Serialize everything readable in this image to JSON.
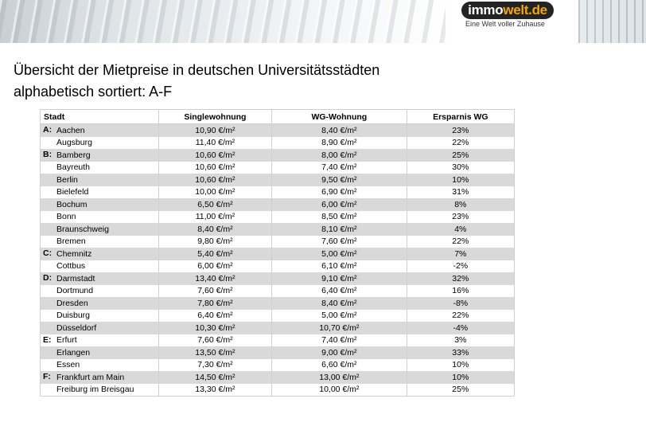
{
  "logo": {
    "part1": "immo",
    "part2": "welt.de",
    "tagline": "Eine Welt voller Zuhause"
  },
  "title_line1": "Übersicht der Mietpreise in deutschen Universitätsstädten",
  "title_line2": "alphabetisch sortiert: A-F",
  "table": {
    "headers": [
      "Stadt",
      "Singlewohnung",
      "WG-Wohnung",
      "Ersparnis WG"
    ],
    "rows": [
      {
        "letter": "A:",
        "city": "Aachen",
        "single": "10,90 €/m²",
        "wg": "8,40 €/m²",
        "savings": "23%"
      },
      {
        "letter": "",
        "city": "Augsburg",
        "single": "11,40 €/m²",
        "wg": "8,90 €/m²",
        "savings": "22%"
      },
      {
        "letter": "B:",
        "city": "Bamberg",
        "single": "10,60 €/m²",
        "wg": "8,00 €/m²",
        "savings": "25%"
      },
      {
        "letter": "",
        "city": "Bayreuth",
        "single": "10,60 €/m²",
        "wg": "7,40 €/m²",
        "savings": "30%"
      },
      {
        "letter": "",
        "city": "Berlin",
        "single": "10,60 €/m²",
        "wg": "9,50 €/m²",
        "savings": "10%"
      },
      {
        "letter": "",
        "city": "Bielefeld",
        "single": "10,00 €/m²",
        "wg": "6,90 €/m²",
        "savings": "31%"
      },
      {
        "letter": "",
        "city": "Bochum",
        "single": "6,50 €/m²",
        "wg": "6,00 €/m²",
        "savings": "8%"
      },
      {
        "letter": "",
        "city": "Bonn",
        "single": "11,00 €/m²",
        "wg": "8,50 €/m²",
        "savings": "23%"
      },
      {
        "letter": "",
        "city": "Braunschweig",
        "single": "8,40 €/m²",
        "wg": "8,10 €/m²",
        "savings": "4%"
      },
      {
        "letter": "",
        "city": "Bremen",
        "single": "9,80 €/m²",
        "wg": "7,60 €/m²",
        "savings": "22%"
      },
      {
        "letter": "C:",
        "city": "Chemnitz",
        "single": "5,40 €/m²",
        "wg": "5,00 €/m²",
        "savings": "7%"
      },
      {
        "letter": "",
        "city": "Cottbus",
        "single": "6,00 €/m²",
        "wg": "6,10 €/m²",
        "savings": "-2%"
      },
      {
        "letter": "D:",
        "city": "Darmstadt",
        "single": "13,40 €/m²",
        "wg": "9,10 €/m²",
        "savings": "32%"
      },
      {
        "letter": "",
        "city": "Dortmund",
        "single": "7,60 €/m²",
        "wg": "6,40 €/m²",
        "savings": "16%"
      },
      {
        "letter": "",
        "city": "Dresden",
        "single": "7,80 €/m²",
        "wg": "8,40 €/m²",
        "savings": "-8%"
      },
      {
        "letter": "",
        "city": "Duisburg",
        "single": "6,40 €/m²",
        "wg": "5,00 €/m²",
        "savings": "22%"
      },
      {
        "letter": "",
        "city": "Düsseldorf",
        "single": "10,30 €/m²",
        "wg": "10,70 €/m²",
        "savings": "-4%"
      },
      {
        "letter": "E:",
        "city": "Erfurt",
        "single": "7,60 €/m²",
        "wg": "7,40 €/m²",
        "savings": "3%"
      },
      {
        "letter": "",
        "city": "Erlangen",
        "single": "13,50 €/m²",
        "wg": "9,00 €/m²",
        "savings": "33%"
      },
      {
        "letter": "",
        "city": "Essen",
        "single": "7,30 €/m²",
        "wg": "6,60 €/m²",
        "savings": "10%"
      },
      {
        "letter": "F:",
        "city": "Frankfurt am Main",
        "single": "14,50 €/m²",
        "wg": "13,00 €/m²",
        "savings": "10%"
      },
      {
        "letter": "",
        "city": "Freiburg im Breisgau",
        "single": "13,30 €/m²",
        "wg": "10,00 €/m²",
        "savings": "25%"
      }
    ]
  }
}
